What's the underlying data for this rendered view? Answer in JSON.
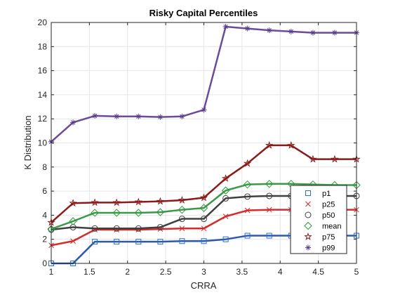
{
  "chart_data": {
    "type": "line",
    "title": "Risky Capital Percentiles",
    "xlabel": "CRRA",
    "ylabel": "K Distribution",
    "xlim": [
      1,
      5
    ],
    "ylim": [
      0,
      20
    ],
    "xticks": [
      1,
      1.5,
      2,
      2.5,
      3,
      3.5,
      4,
      4.5,
      5
    ],
    "xtick_labels": [
      "1",
      "1.5",
      "2",
      "2.5",
      "3",
      "3.5",
      "4",
      "4.5",
      "5"
    ],
    "yticks": [
      0,
      2,
      4,
      6,
      8,
      10,
      12,
      14,
      16,
      18,
      20
    ],
    "ytick_labels": [
      "0",
      "2",
      "4",
      "6",
      "8",
      "10",
      "12",
      "14",
      "16",
      "18",
      "20"
    ],
    "grid": true,
    "legend_position": "bottom-right",
    "x": [
      1.0,
      1.286,
      1.571,
      1.857,
      2.143,
      2.429,
      2.714,
      3.0,
      3.286,
      3.571,
      3.857,
      4.143,
      4.429,
      4.714,
      5.0
    ],
    "series": [
      {
        "name": "p1",
        "line_color": "#2b5aa6",
        "marker": "square",
        "marker_color": "#2b6bd6",
        "values": [
          0.0,
          0.0,
          1.8,
          1.8,
          1.8,
          1.8,
          1.85,
          1.85,
          2.0,
          2.3,
          2.3,
          2.3,
          2.3,
          2.3,
          2.3
        ]
      },
      {
        "name": "p25",
        "line_color": "#d62b2b",
        "marker": "x",
        "marker_color": "#d62b2b",
        "values": [
          1.5,
          1.85,
          2.8,
          2.8,
          2.8,
          2.85,
          2.9,
          2.9,
          3.9,
          4.4,
          4.45,
          4.45,
          4.45,
          4.45,
          4.45
        ]
      },
      {
        "name": "p50",
        "line_color": "#404040",
        "marker": "circle",
        "marker_color": "#404040",
        "values": [
          2.8,
          3.0,
          2.9,
          2.9,
          2.9,
          3.0,
          3.7,
          3.7,
          5.4,
          5.55,
          5.6,
          5.6,
          5.6,
          5.6,
          5.6
        ]
      },
      {
        "name": "mean",
        "line_color": "#3a9a48",
        "marker": "diamond",
        "marker_color": "#2d9a3a",
        "values": [
          2.85,
          3.5,
          4.2,
          4.2,
          4.2,
          4.25,
          4.45,
          4.6,
          6.05,
          6.55,
          6.6,
          6.6,
          6.55,
          6.5,
          6.5
        ]
      },
      {
        "name": "p75",
        "line_color": "#8b1a1a",
        "marker": "pentagram",
        "marker_color": "#8b1a1a",
        "values": [
          3.4,
          5.0,
          5.05,
          5.05,
          5.1,
          5.15,
          5.25,
          5.45,
          7.05,
          8.3,
          9.8,
          9.8,
          8.65,
          8.65,
          8.65
        ]
      },
      {
        "name": "p99",
        "line_color": "#6a4c9c",
        "marker": "asterisk",
        "marker_color": "#5a3d8a",
        "values": [
          10.1,
          11.7,
          12.25,
          12.2,
          12.2,
          12.15,
          12.2,
          12.75,
          19.65,
          19.5,
          19.35,
          19.25,
          19.15,
          19.15,
          19.15
        ]
      }
    ]
  }
}
